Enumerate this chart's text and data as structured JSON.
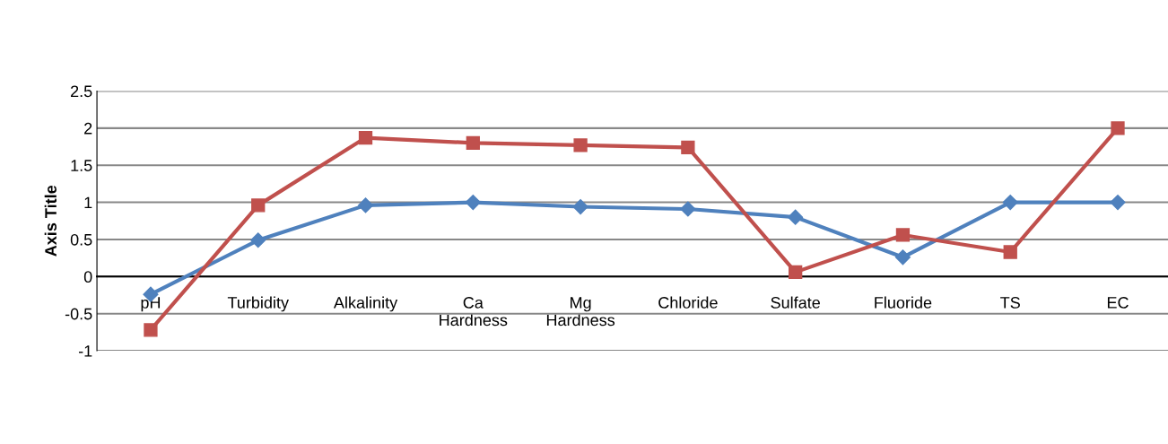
{
  "chart_data": {
    "type": "line",
    "ylabel": "Axis Title",
    "categories": [
      "pH",
      "Turbidity",
      "Alkalinity",
      "Ca\nHardness",
      "Mg\nHardness",
      "Chloride",
      "Sulfate",
      "Fluoride",
      "TS",
      "EC"
    ],
    "series": [
      {
        "color": "#4f81bd",
        "marker": "diamond",
        "values": [
          -0.24,
          0.49,
          0.96,
          1.0,
          0.94,
          0.91,
          0.8,
          0.26,
          1.0,
          1.0
        ]
      },
      {
        "color": "#c0504d",
        "marker": "square",
        "values": [
          -0.72,
          0.96,
          1.87,
          1.8,
          1.77,
          1.74,
          0.06,
          0.56,
          0.33,
          2.0
        ]
      }
    ],
    "ylim": [
      -1,
      2.5
    ],
    "yticks": [
      -1,
      -0.5,
      0,
      0.5,
      1,
      1.5,
      2,
      2.5
    ],
    "grid": "y",
    "line_style": "solid"
  }
}
